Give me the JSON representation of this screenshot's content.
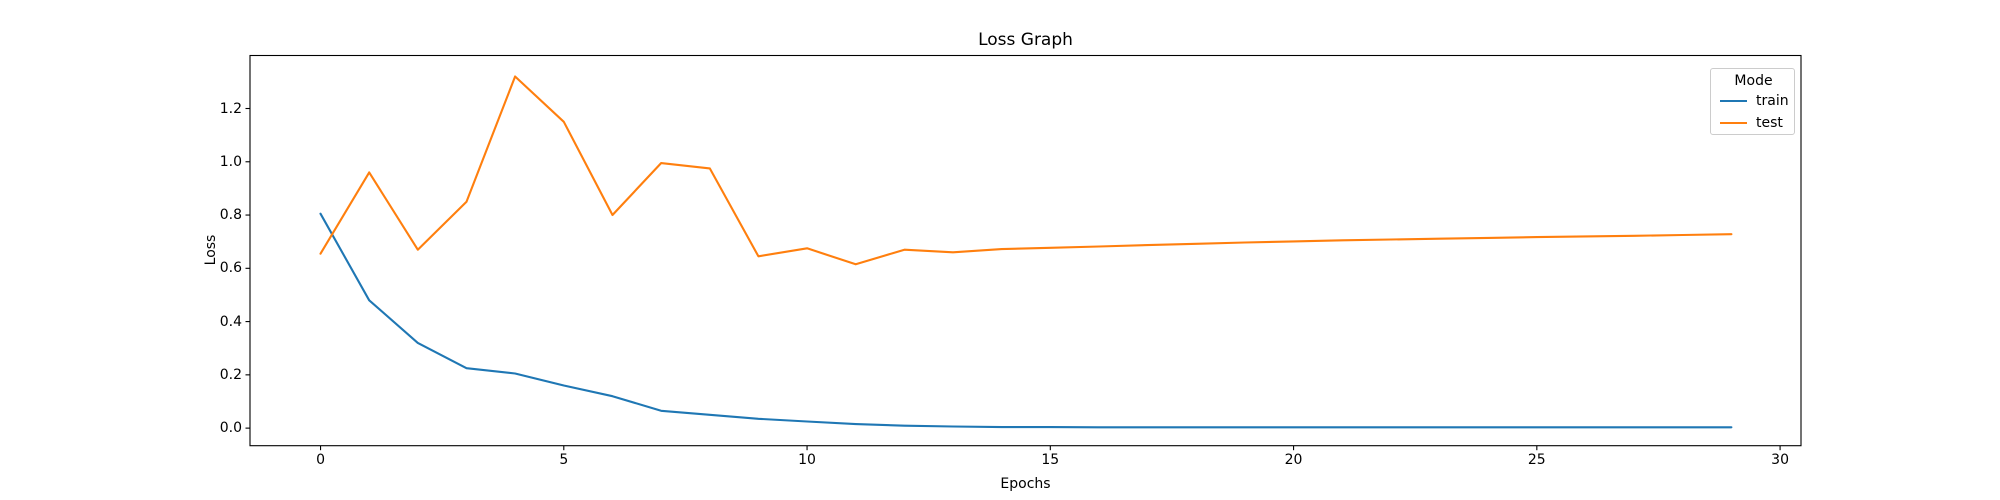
{
  "figure": {
    "title": "Loss Graph",
    "xlabel": "Epochs",
    "ylabel": "Loss",
    "background_color": "#ffffff",
    "frame_color": "#000000",
    "text_color": "#000000"
  },
  "legend": {
    "title": "Mode",
    "entries": [
      {
        "label": "train",
        "color": "#1f77b4"
      },
      {
        "label": "test",
        "color": "#ff7f0e"
      }
    ]
  },
  "chart_data": {
    "type": "line",
    "title": "Loss Graph",
    "xlabel": "Epochs",
    "ylabel": "Loss",
    "x": [
      0,
      1,
      2,
      3,
      4,
      5,
      6,
      7,
      8,
      9,
      10,
      11,
      12,
      13,
      14,
      15,
      16,
      17,
      18,
      19,
      20,
      21,
      22,
      23,
      24,
      25,
      26,
      27,
      28,
      29
    ],
    "series": [
      {
        "name": "train",
        "color": "#1f77b4",
        "values": [
          0.805,
          0.48,
          0.32,
          0.225,
          0.205,
          0.16,
          0.12,
          0.065,
          0.05,
          0.035,
          0.025,
          0.015,
          0.009,
          0.006,
          0.004,
          0.004,
          0.003,
          0.003,
          0.003,
          0.003,
          0.003,
          0.003,
          0.003,
          0.003,
          0.003,
          0.003,
          0.003,
          0.003,
          0.003,
          0.003
        ]
      },
      {
        "name": "test",
        "color": "#ff7f0e",
        "values": [
          0.655,
          0.96,
          0.67,
          0.85,
          1.32,
          1.15,
          0.8,
          0.995,
          0.975,
          0.645,
          0.675,
          0.615,
          0.67,
          0.66,
          0.672,
          0.677,
          0.682,
          0.687,
          0.692,
          0.697,
          0.701,
          0.705,
          0.708,
          0.711,
          0.714,
          0.717,
          0.72,
          0.722,
          0.725,
          0.728
        ]
      }
    ],
    "xlim": [
      -1.45,
      30.43
    ],
    "ylim": [
      -0.066,
      1.399
    ],
    "xticks": [
      0,
      5,
      10,
      15,
      20,
      25,
      30
    ],
    "xtick_labels": [
      "0",
      "5",
      "10",
      "15",
      "20",
      "25",
      "30"
    ],
    "yticks": [
      0.0,
      0.2,
      0.4,
      0.6,
      0.8,
      1.0,
      1.2
    ],
    "ytick_labels": [
      "0.0",
      "0.2",
      "0.4",
      "0.6",
      "0.8",
      "1.0",
      "1.2"
    ],
    "grid": false,
    "legend_position": "upper right",
    "legend_title": "Mode"
  }
}
